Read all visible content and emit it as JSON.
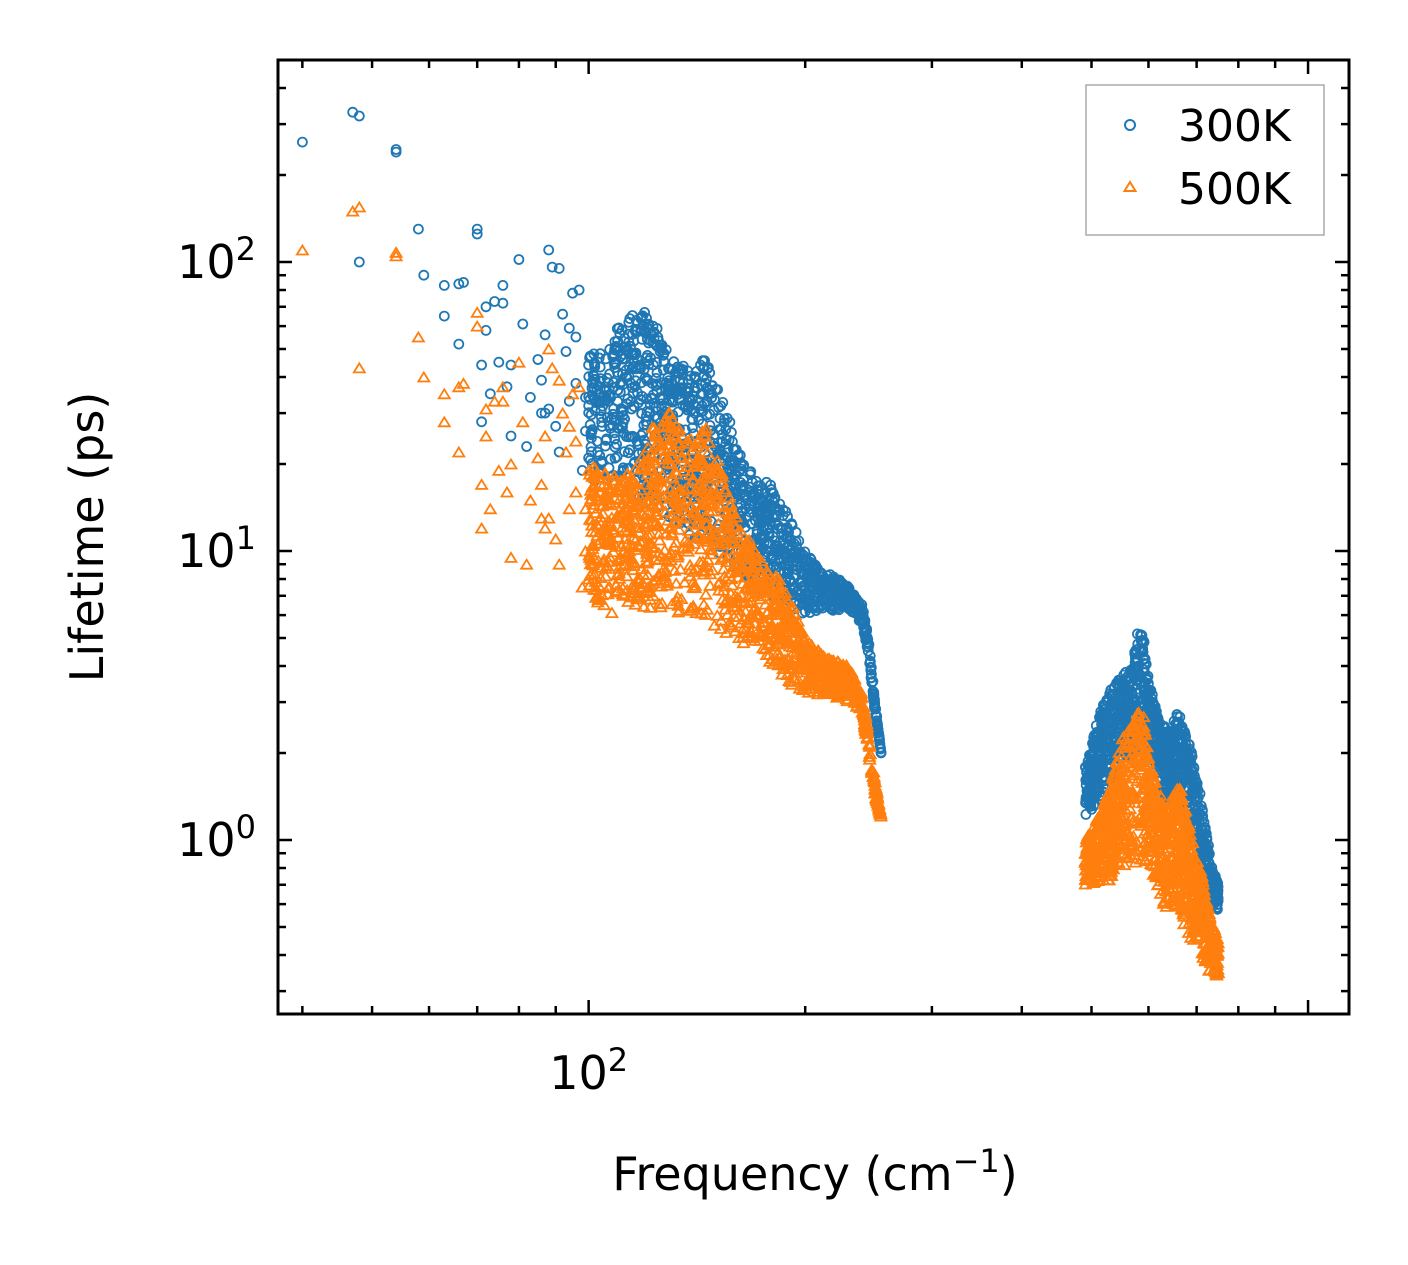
{
  "chart_data": {
    "type": "scatter",
    "title": "",
    "xlabel": "Frequency (cm",
    "xlabel_sup": "−1",
    "xlabel_close": ")",
    "ylabel": "Lifetime (ps)",
    "xscale": "log",
    "yscale": "log",
    "xlim": [
      37,
      1140
    ],
    "ylim": [
      0.25,
      500
    ],
    "x_major_ticks": [
      {
        "value": 100,
        "base": "10",
        "exp": "2"
      }
    ],
    "y_major_ticks": [
      {
        "value": 1,
        "base": "10",
        "exp": "0"
      },
      {
        "value": 10,
        "base": "10",
        "exp": "1"
      },
      {
        "value": 100,
        "base": "10",
        "exp": "2"
      }
    ],
    "legend_position": "top-right",
    "series": [
      {
        "name": "300K",
        "marker": "circle",
        "color": "#1f77b4",
        "points": [
          [
            40,
            260
          ],
          [
            47,
            330
          ],
          [
            48,
            320
          ],
          [
            48,
            100
          ],
          [
            54,
            240
          ],
          [
            54,
            245
          ],
          [
            58,
            130
          ],
          [
            59,
            90
          ],
          [
            63,
            83
          ],
          [
            63,
            65
          ],
          [
            66,
            84
          ],
          [
            66,
            52
          ],
          [
            67,
            85
          ],
          [
            70,
            125
          ],
          [
            70,
            130
          ],
          [
            71,
            44
          ],
          [
            71,
            28
          ],
          [
            72,
            70
          ],
          [
            72,
            58
          ],
          [
            73,
            35
          ],
          [
            74,
            73
          ],
          [
            75,
            45
          ],
          [
            76,
            83
          ],
          [
            76,
            72
          ],
          [
            77,
            37
          ],
          [
            78,
            44
          ],
          [
            78,
            25
          ],
          [
            80,
            102
          ],
          [
            81,
            61
          ],
          [
            82,
            23
          ],
          [
            83,
            34
          ],
          [
            85,
            46
          ],
          [
            86,
            30
          ],
          [
            86,
            39
          ],
          [
            87,
            56
          ],
          [
            87,
            30
          ],
          [
            88,
            110
          ],
          [
            88,
            31
          ],
          [
            89,
            96
          ],
          [
            90,
            27
          ],
          [
            91,
            22
          ],
          [
            91,
            95
          ],
          [
            92,
            66
          ],
          [
            93,
            49
          ],
          [
            94,
            33
          ],
          [
            94,
            59
          ],
          [
            95,
            78
          ],
          [
            96,
            38
          ],
          [
            96,
            55
          ],
          [
            97,
            80
          ],
          [
            98,
            19
          ],
          [
            99,
            34
          ],
          [
            99,
            26
          ],
          [
            100,
            44
          ],
          [
            100,
            21
          ]
        ],
        "envelope_upper": [
          [
            100,
            50
          ],
          [
            105,
            48
          ],
          [
            110,
            62
          ],
          [
            115,
            66
          ],
          [
            120,
            68
          ],
          [
            125,
            58
          ],
          [
            130,
            46
          ],
          [
            135,
            44
          ],
          [
            140,
            40
          ],
          [
            145,
            48
          ],
          [
            150,
            38
          ],
          [
            155,
            32
          ],
          [
            160,
            24
          ],
          [
            170,
            18
          ],
          [
            180,
            17
          ],
          [
            190,
            13
          ],
          [
            200,
            10
          ],
          [
            210,
            8.5
          ],
          [
            220,
            8.2
          ],
          [
            230,
            7.5
          ],
          [
            240,
            6.5
          ],
          [
            245,
            5.0
          ],
          [
            250,
            3.0
          ],
          [
            255,
            2.0
          ]
        ],
        "envelope_lower": [
          [
            100,
            17
          ],
          [
            110,
            16
          ],
          [
            120,
            14
          ],
          [
            130,
            13
          ],
          [
            140,
            11
          ],
          [
            150,
            10
          ],
          [
            160,
            8.5
          ],
          [
            170,
            7.5
          ],
          [
            180,
            7
          ],
          [
            190,
            6.3
          ],
          [
            200,
            6
          ],
          [
            210,
            6.2
          ],
          [
            220,
            6.2
          ],
          [
            230,
            6.3
          ],
          [
            240,
            5.5
          ],
          [
            245,
            4.2
          ],
          [
            250,
            2.8
          ],
          [
            255,
            2.0
          ]
        ],
        "cluster2_upper": [
          [
            490,
            1.8
          ],
          [
            510,
            2.6
          ],
          [
            530,
            3.4
          ],
          [
            550,
            3.7
          ],
          [
            570,
            4.0
          ],
          [
            580,
            5.5
          ],
          [
            590,
            5.2
          ],
          [
            600,
            3.6
          ],
          [
            620,
            2.6
          ],
          [
            640,
            2.4
          ],
          [
            660,
            2.8
          ],
          [
            670,
            2.5
          ],
          [
            690,
            2.0
          ],
          [
            710,
            1.4
          ],
          [
            730,
            0.9
          ],
          [
            750,
            0.7
          ]
        ],
        "cluster2_lower": [
          [
            490,
            1.2
          ],
          [
            510,
            1.3
          ],
          [
            530,
            1.4
          ],
          [
            550,
            1.6
          ],
          [
            570,
            1.8
          ],
          [
            590,
            2.0
          ],
          [
            610,
            1.8
          ],
          [
            630,
            1.4
          ],
          [
            650,
            1.3
          ],
          [
            670,
            1.2
          ],
          [
            690,
            1.0
          ],
          [
            710,
            0.8
          ],
          [
            730,
            0.62
          ],
          [
            750,
            0.55
          ]
        ]
      },
      {
        "name": "500K",
        "marker": "triangle",
        "color": "#ff7f0e",
        "points": [
          [
            40,
            110
          ],
          [
            47,
            150
          ],
          [
            48,
            155
          ],
          [
            48,
            43
          ],
          [
            54,
            108
          ],
          [
            54,
            105
          ],
          [
            58,
            55
          ],
          [
            59,
            40
          ],
          [
            63,
            35
          ],
          [
            63,
            28
          ],
          [
            66,
            37
          ],
          [
            66,
            22
          ],
          [
            67,
            38
          ],
          [
            70,
            60
          ],
          [
            70,
            67
          ],
          [
            71,
            17
          ],
          [
            71,
            12
          ],
          [
            72,
            31
          ],
          [
            72,
            25
          ],
          [
            73,
            14
          ],
          [
            74,
            33
          ],
          [
            75,
            19
          ],
          [
            76,
            37
          ],
          [
            76,
            33
          ],
          [
            77,
            16
          ],
          [
            78,
            20
          ],
          [
            78,
            9.5
          ],
          [
            80,
            45
          ],
          [
            81,
            28
          ],
          [
            82,
            9
          ],
          [
            83,
            15
          ],
          [
            85,
            21
          ],
          [
            86,
            13
          ],
          [
            86,
            17
          ],
          [
            87,
            25
          ],
          [
            87,
            12
          ],
          [
            88,
            50
          ],
          [
            88,
            13
          ],
          [
            89,
            43
          ],
          [
            90,
            11
          ],
          [
            91,
            9
          ],
          [
            91,
            39
          ],
          [
            92,
            30
          ],
          [
            93,
            22
          ],
          [
            94,
            14
          ],
          [
            94,
            27
          ],
          [
            95,
            35
          ],
          [
            96,
            16
          ],
          [
            96,
            24
          ],
          [
            97,
            37
          ],
          [
            98,
            7.5
          ],
          [
            99,
            14
          ],
          [
            99,
            10
          ],
          [
            100,
            19
          ],
          [
            100,
            8
          ]
        ],
        "envelope_upper": [
          [
            100,
            20
          ],
          [
            110,
            18
          ],
          [
            120,
            22
          ],
          [
            125,
            35
          ],
          [
            130,
            30
          ],
          [
            135,
            26
          ],
          [
            140,
            25
          ],
          [
            145,
            28
          ],
          [
            150,
            22
          ],
          [
            155,
            17
          ],
          [
            160,
            14
          ],
          [
            170,
            10
          ],
          [
            180,
            8.8
          ],
          [
            190,
            7
          ],
          [
            200,
            5
          ],
          [
            210,
            4.5
          ],
          [
            220,
            4.2
          ],
          [
            230,
            4.0
          ],
          [
            240,
            3.2
          ],
          [
            245,
            2.3
          ],
          [
            250,
            1.6
          ],
          [
            255,
            1.2
          ]
        ],
        "envelope_lower": [
          [
            100,
            6.5
          ],
          [
            110,
            6
          ],
          [
            120,
            6.2
          ],
          [
            130,
            6
          ],
          [
            140,
            5.8
          ],
          [
            150,
            5.5
          ],
          [
            160,
            5
          ],
          [
            170,
            4.5
          ],
          [
            180,
            4.0
          ],
          [
            190,
            3.5
          ],
          [
            200,
            3.2
          ],
          [
            210,
            3.2
          ],
          [
            220,
            3.1
          ],
          [
            230,
            3.0
          ],
          [
            240,
            2.8
          ],
          [
            245,
            2.0
          ],
          [
            250,
            1.4
          ],
          [
            255,
            1.2
          ]
        ],
        "cluster2_upper": [
          [
            490,
            1.0
          ],
          [
            510,
            1.2
          ],
          [
            530,
            1.5
          ],
          [
            550,
            2.2
          ],
          [
            570,
            2.6
          ],
          [
            580,
            3.0
          ],
          [
            590,
            2.8
          ],
          [
            600,
            2.0
          ],
          [
            620,
            1.5
          ],
          [
            640,
            1.3
          ],
          [
            660,
            1.6
          ],
          [
            670,
            1.4
          ],
          [
            690,
            1.0
          ],
          [
            710,
            0.8
          ],
          [
            730,
            0.55
          ],
          [
            750,
            0.45
          ]
        ],
        "cluster2_lower": [
          [
            490,
            0.7
          ],
          [
            510,
            0.7
          ],
          [
            530,
            0.72
          ],
          [
            550,
            0.75
          ],
          [
            570,
            0.8
          ],
          [
            590,
            0.85
          ],
          [
            610,
            0.75
          ],
          [
            630,
            0.6
          ],
          [
            650,
            0.55
          ],
          [
            670,
            0.5
          ],
          [
            690,
            0.45
          ],
          [
            710,
            0.4
          ],
          [
            730,
            0.35
          ],
          [
            750,
            0.33
          ]
        ]
      }
    ]
  }
}
